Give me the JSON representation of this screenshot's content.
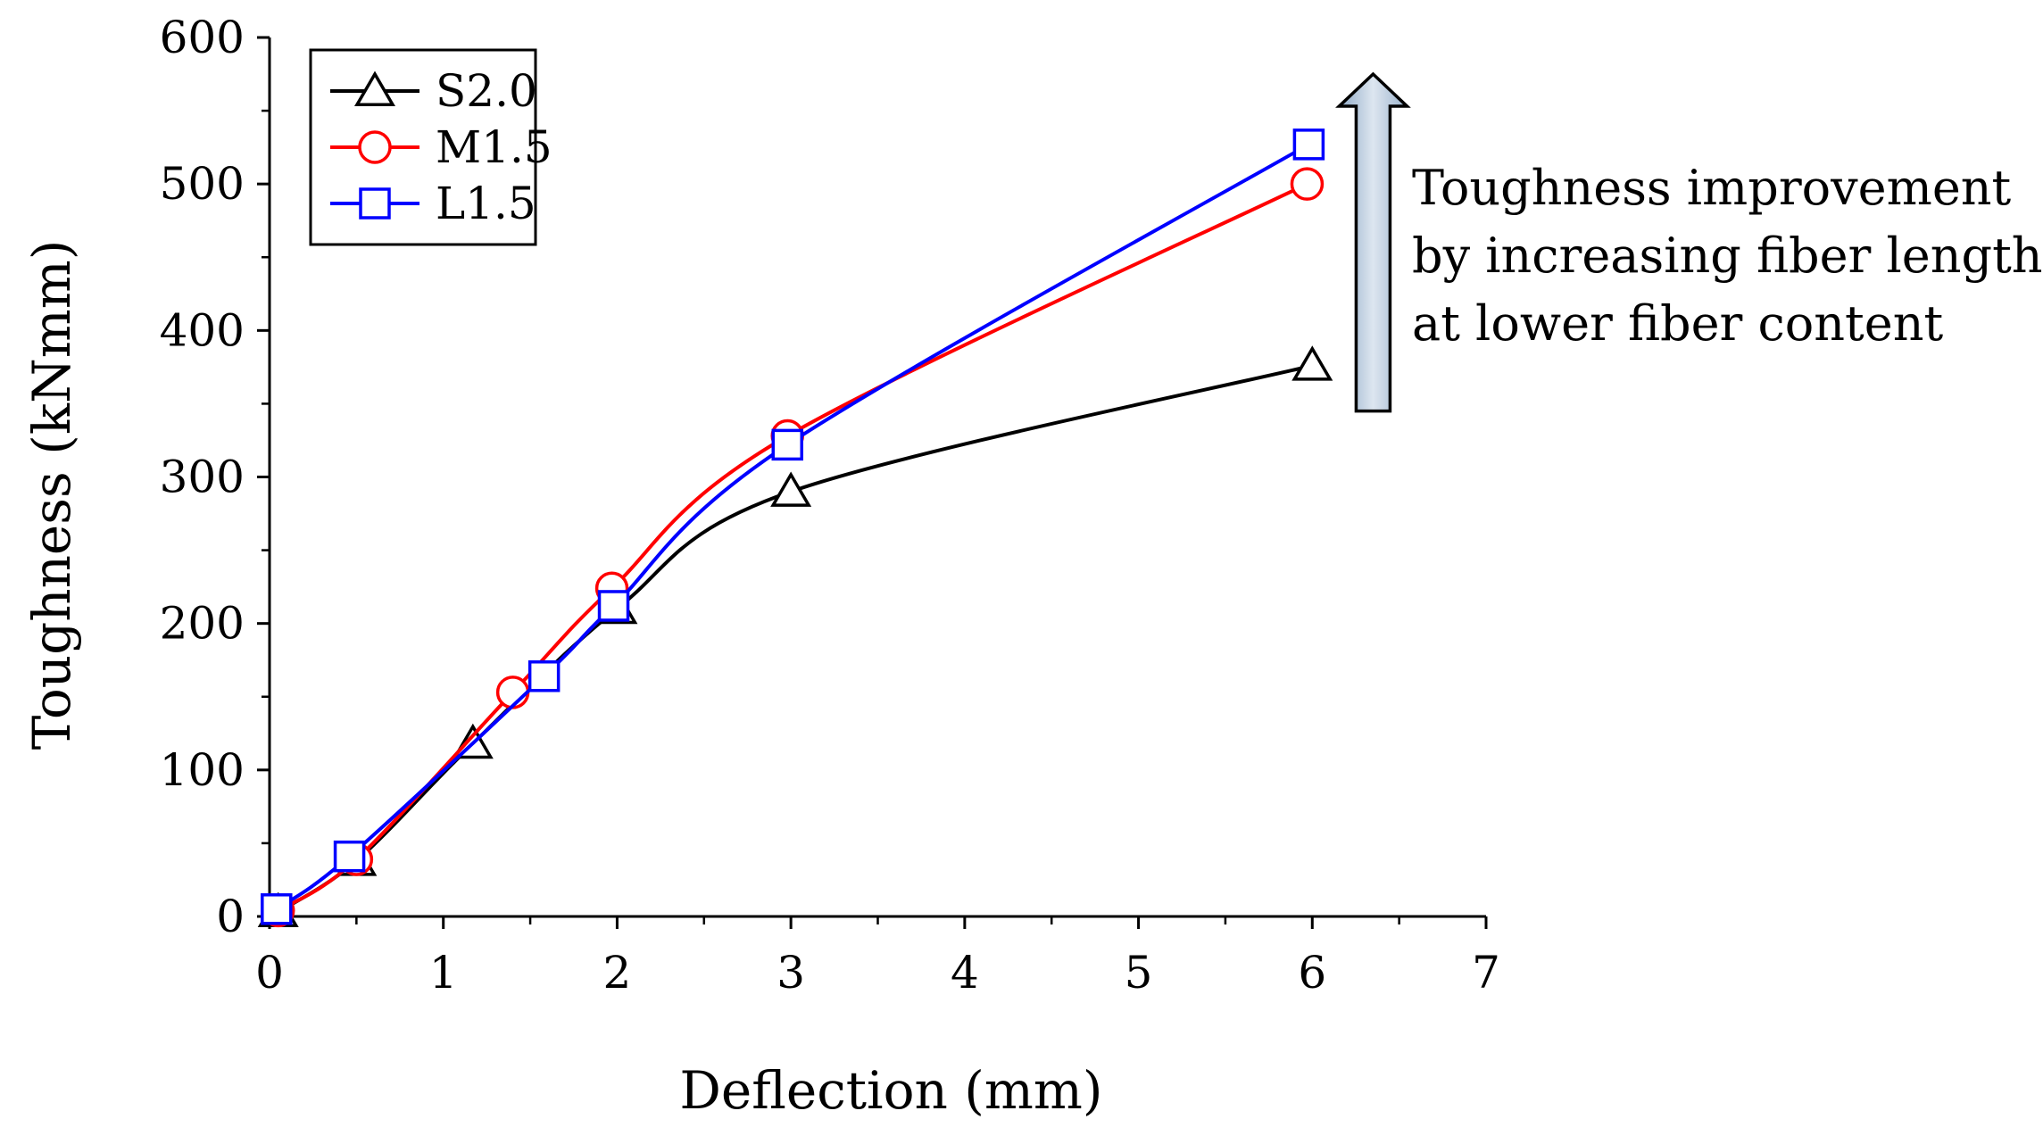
{
  "chart_data": {
    "type": "line",
    "title": "",
    "xlabel": "Deflection (mm)",
    "ylabel": "Toughness (kNmm)",
    "xlim": [
      0,
      7
    ],
    "ylim": [
      0,
      600
    ],
    "xticks": [
      0,
      1,
      2,
      3,
      4,
      5,
      6,
      7
    ],
    "yticks": [
      0,
      100,
      200,
      300,
      400,
      500,
      600
    ],
    "xtick_labels": [
      "0",
      "1",
      "2",
      "3",
      "4",
      "5",
      "6",
      "7"
    ],
    "ytick_labels": [
      "0",
      "100",
      "200",
      "300",
      "400",
      "500",
      "600"
    ],
    "grid": false,
    "legend_position": "top-left",
    "series": [
      {
        "name": "S2.0",
        "color": "#000000",
        "marker": "triangle",
        "x": [
          0.05,
          0.5,
          1.17,
          2.0,
          3.0,
          6.0
        ],
        "y": [
          3,
          38,
          118,
          210,
          290,
          376
        ]
      },
      {
        "name": "M1.5",
        "color": "#ff0000",
        "marker": "circle",
        "x": [
          0.05,
          0.5,
          1.4,
          1.97,
          2.98,
          5.97
        ],
        "y": [
          4,
          39,
          153,
          224,
          328,
          500
        ]
      },
      {
        "name": "L1.5",
        "color": "#0000ff",
        "marker": "square",
        "x": [
          0.04,
          0.46,
          1.58,
          1.98,
          2.98,
          5.98
        ],
        "y": [
          5,
          41,
          164,
          212,
          322,
          527
        ]
      }
    ],
    "annotation": {
      "lines": [
        "Toughness improvement",
        "by increasing fiber length",
        "at lower fiber content"
      ],
      "arrow_from_y": 345,
      "arrow_to_y": 575,
      "arrow_x": 6.35
    }
  }
}
